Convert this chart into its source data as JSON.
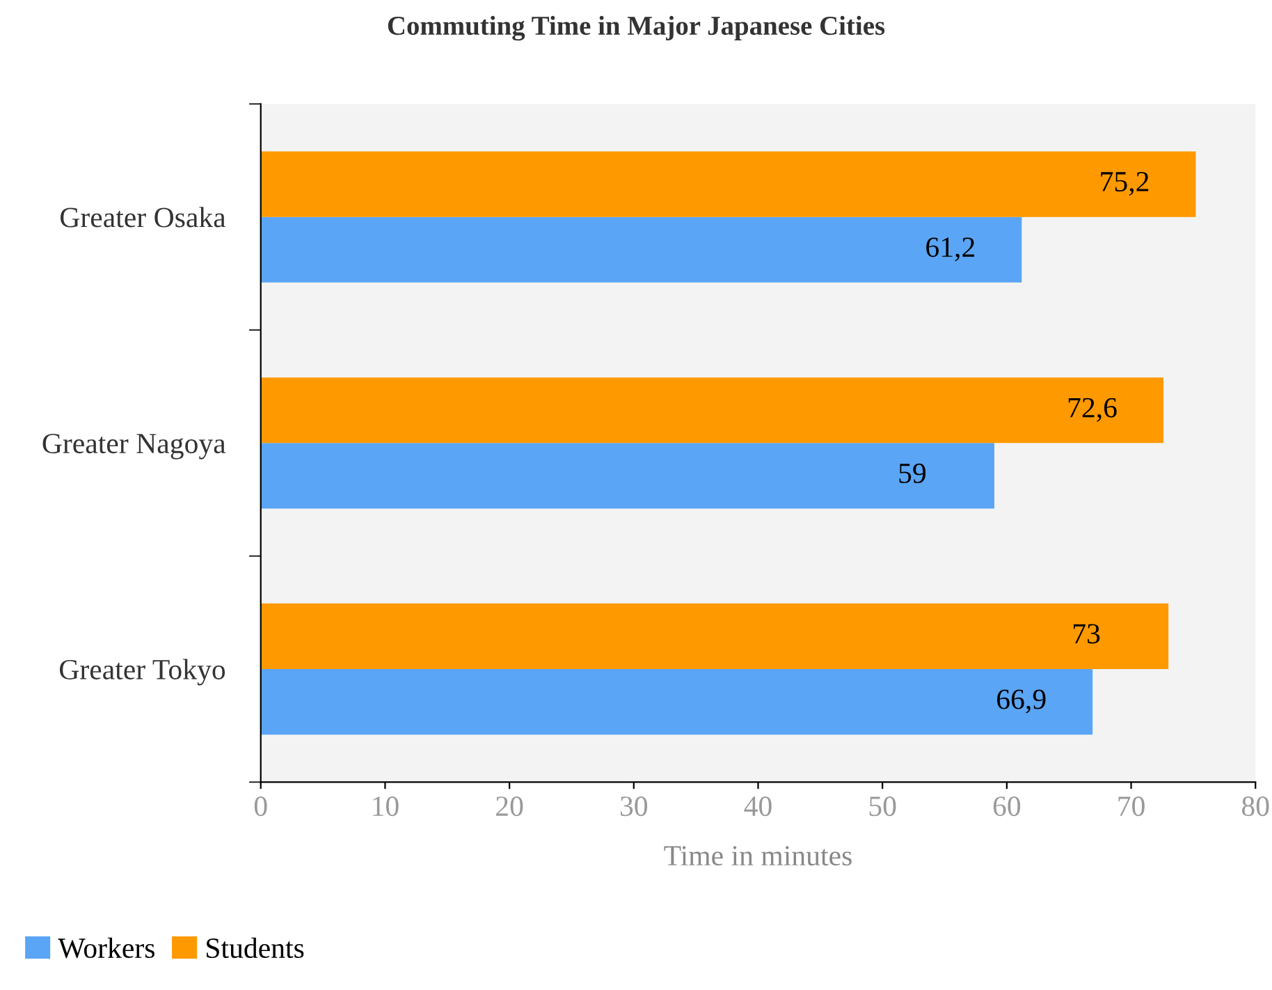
{
  "chart_data": {
    "type": "bar",
    "orientation": "horizontal",
    "title": "Commuting Time in Major Japanese Cities",
    "xlabel": "Time in minutes",
    "categories": [
      "Greater Osaka",
      "Greater Nagoya",
      "Greater Tokyo"
    ],
    "series": [
      {
        "name": "Workers",
        "color": "#5aa5f5",
        "values": [
          61.2,
          59,
          66.9
        ],
        "value_labels": [
          "61,2",
          "59",
          "66,9"
        ]
      },
      {
        "name": "Students",
        "color": "#ff9900",
        "values": [
          75.2,
          72.6,
          73
        ],
        "value_labels": [
          "75,2",
          "72,6",
          "73"
        ]
      }
    ],
    "xlim": [
      0,
      80
    ],
    "xticks": [
      0,
      10,
      20,
      30,
      40,
      50,
      60,
      70,
      80
    ],
    "grid": false,
    "legend": "bottom left"
  }
}
